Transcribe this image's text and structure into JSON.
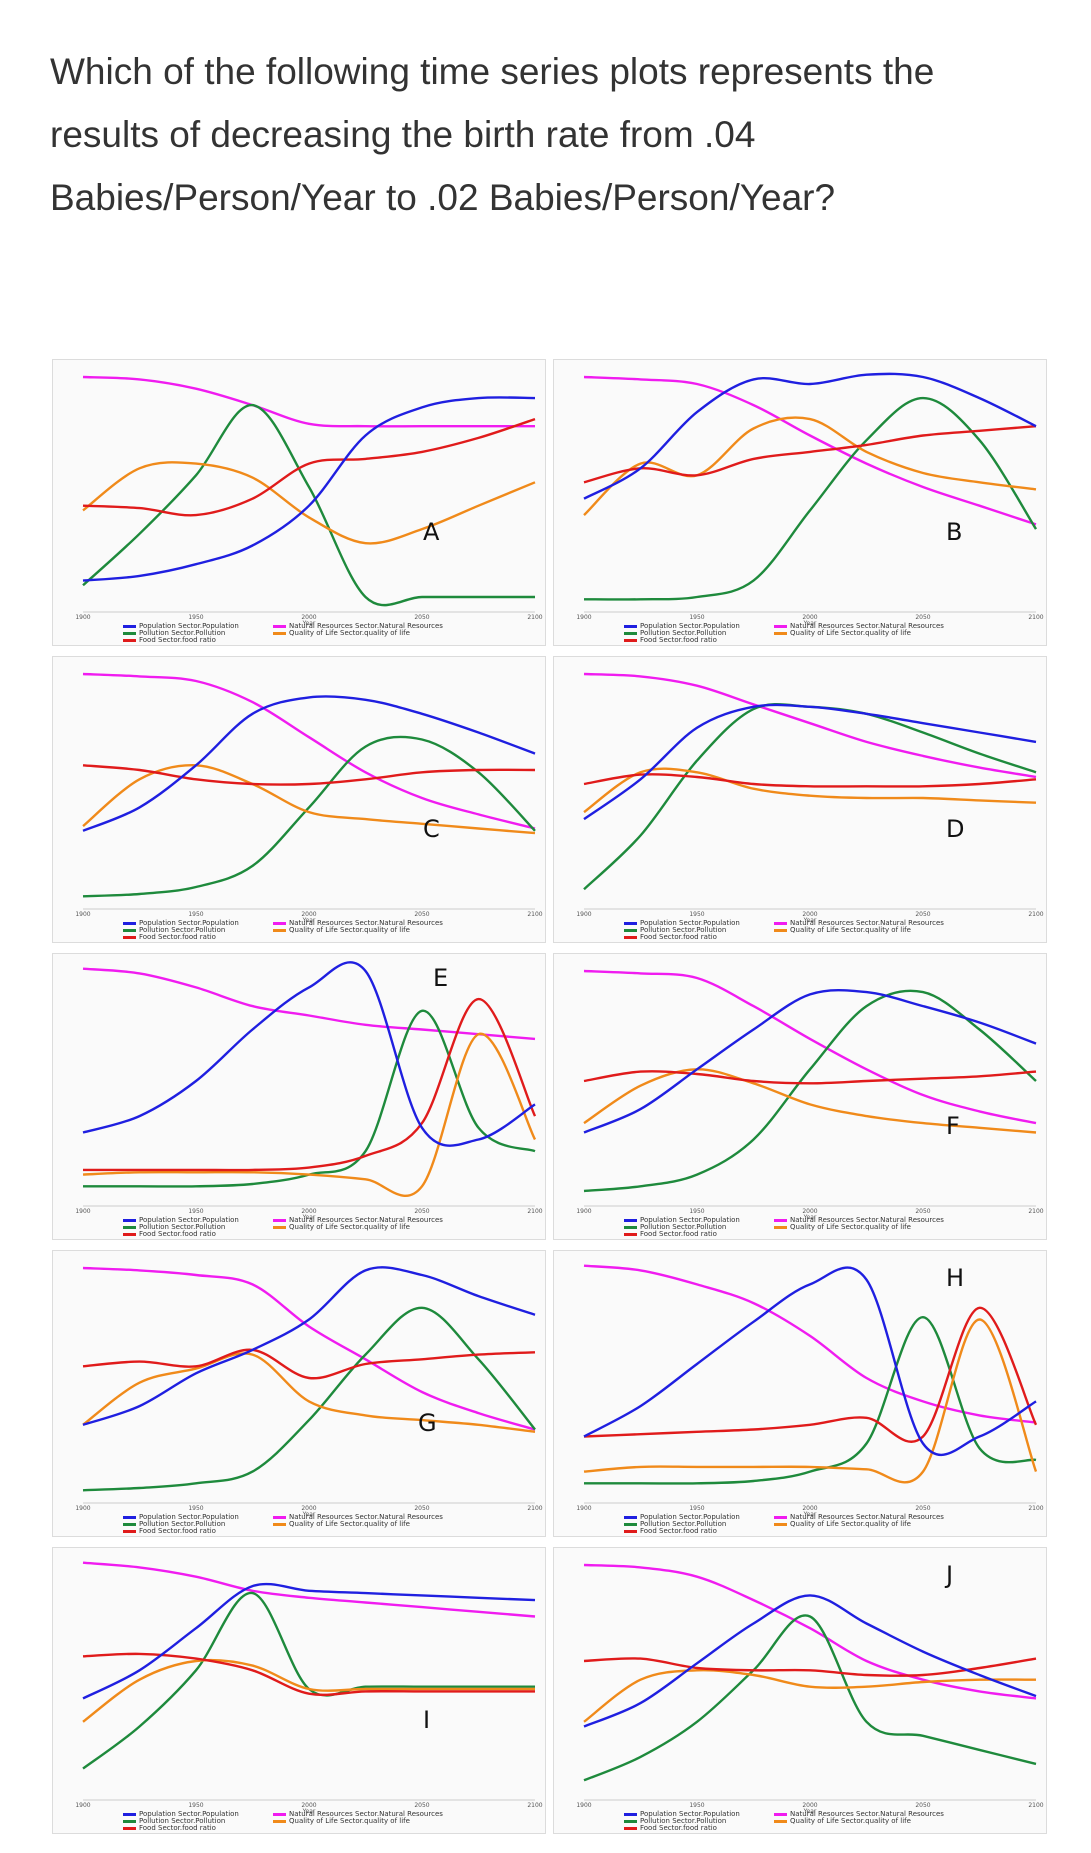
{
  "question": "Which of the following time series plots represents the results of decreasing the birth rate from .04 Babies/Person/Year to .02 Babies/Person/Year?",
  "colors": {
    "population": "#1f1fe0",
    "pollution": "#1e8a3c",
    "food": "#e01b1b",
    "resources": "#f01cf0",
    "quality": "#f08a1a"
  },
  "legend": {
    "population": "Population Sector.Population",
    "pollution": "Pollution Sector.Pollution",
    "food": "Food Sector.food ratio",
    "resources": "Natural Resources Sector.Natural Resources",
    "quality": "Quality of Life Sector.quality of life"
  },
  "chart_data": [
    {
      "type": "line",
      "label": "A",
      "x_ticks": [
        "1900",
        "1950",
        "2000",
        "2050",
        "2100"
      ],
      "xlabel": "Year",
      "x": [
        1900,
        1925,
        1950,
        1975,
        2000,
        2025,
        2050,
        2075,
        2100
      ],
      "series": {
        "population": [
          0.1,
          0.12,
          0.17,
          0.25,
          0.42,
          0.72,
          0.84,
          0.88,
          0.88
        ],
        "pollution": [
          0.08,
          0.3,
          0.55,
          0.85,
          0.5,
          0.03,
          0.03,
          0.03,
          0.03
        ],
        "food": [
          0.42,
          0.41,
          0.38,
          0.45,
          0.6,
          0.62,
          0.65,
          0.71,
          0.79
        ],
        "resources": [
          0.97,
          0.96,
          0.92,
          0.85,
          0.77,
          0.76,
          0.76,
          0.76,
          0.76
        ],
        "quality": [
          0.4,
          0.58,
          0.6,
          0.54,
          0.37,
          0.26,
          0.32,
          0.42,
          0.52
        ]
      }
    },
    {
      "type": "line",
      "label": "B",
      "x_ticks": [
        "1900",
        "1950",
        "2000",
        "2050",
        "2100"
      ],
      "xlabel": "Year",
      "x": [
        1900,
        1925,
        1950,
        1975,
        2000,
        2025,
        2050,
        2075,
        2100
      ],
      "series": {
        "population": [
          0.45,
          0.58,
          0.82,
          0.96,
          0.94,
          0.98,
          0.97,
          0.88,
          0.76
        ],
        "pollution": [
          0.02,
          0.02,
          0.03,
          0.1,
          0.4,
          0.7,
          0.88,
          0.7,
          0.32
        ],
        "food": [
          0.52,
          0.58,
          0.55,
          0.62,
          0.65,
          0.68,
          0.72,
          0.74,
          0.76
        ],
        "resources": [
          0.97,
          0.96,
          0.94,
          0.85,
          0.72,
          0.6,
          0.5,
          0.42,
          0.34
        ],
        "quality": [
          0.38,
          0.6,
          0.55,
          0.75,
          0.79,
          0.65,
          0.56,
          0.52,
          0.49
        ]
      }
    },
    {
      "type": "line",
      "label": "C",
      "x_ticks": [
        "1900",
        "1950",
        "2000",
        "2050",
        "2100"
      ],
      "xlabel": "Year",
      "x": [
        1900,
        1925,
        1950,
        1975,
        2000,
        2025,
        2050,
        2075,
        2100
      ],
      "series": {
        "population": [
          0.3,
          0.4,
          0.58,
          0.8,
          0.87,
          0.86,
          0.8,
          0.72,
          0.63
        ],
        "pollution": [
          0.02,
          0.03,
          0.06,
          0.15,
          0.4,
          0.66,
          0.69,
          0.55,
          0.3
        ],
        "food": [
          0.58,
          0.56,
          0.52,
          0.5,
          0.5,
          0.52,
          0.55,
          0.56,
          0.56
        ],
        "resources": [
          0.97,
          0.96,
          0.94,
          0.85,
          0.7,
          0.55,
          0.44,
          0.37,
          0.31
        ],
        "quality": [
          0.32,
          0.52,
          0.58,
          0.5,
          0.38,
          0.35,
          0.33,
          0.31,
          0.29
        ]
      }
    },
    {
      "type": "line",
      "label": "D",
      "x_ticks": [
        "1900",
        "1950",
        "2000",
        "2050",
        "2100"
      ],
      "xlabel": "Year",
      "x": [
        1900,
        1925,
        1950,
        1975,
        2000,
        2025,
        2050,
        2075,
        2100
      ],
      "series": {
        "population": [
          0.35,
          0.52,
          0.74,
          0.83,
          0.83,
          0.8,
          0.76,
          0.72,
          0.68
        ],
        "pollution": [
          0.05,
          0.28,
          0.6,
          0.82,
          0.83,
          0.8,
          0.72,
          0.63,
          0.55
        ],
        "food": [
          0.5,
          0.54,
          0.53,
          0.5,
          0.49,
          0.49,
          0.49,
          0.5,
          0.52
        ],
        "resources": [
          0.97,
          0.96,
          0.92,
          0.84,
          0.76,
          0.68,
          0.62,
          0.57,
          0.53
        ],
        "quality": [
          0.38,
          0.55,
          0.55,
          0.48,
          0.45,
          0.44,
          0.44,
          0.43,
          0.42
        ]
      }
    },
    {
      "type": "line",
      "label": "E",
      "x_ticks": [
        "1900",
        "1950",
        "2000",
        "2050",
        "2100"
      ],
      "xlabel": "Year",
      "x": [
        1900,
        1925,
        1950,
        1975,
        2000,
        2025,
        2050,
        2075,
        2100
      ],
      "series": {
        "population": [
          0.28,
          0.35,
          0.5,
          0.72,
          0.9,
          0.97,
          0.3,
          0.25,
          0.4
        ],
        "pollution": [
          0.05,
          0.05,
          0.05,
          0.06,
          0.1,
          0.2,
          0.8,
          0.3,
          0.2
        ],
        "food": [
          0.12,
          0.12,
          0.12,
          0.12,
          0.13,
          0.18,
          0.32,
          0.85,
          0.35
        ],
        "resources": [
          0.98,
          0.96,
          0.9,
          0.82,
          0.78,
          0.74,
          0.72,
          0.7,
          0.68
        ],
        "quality": [
          0.1,
          0.11,
          0.11,
          0.11,
          0.1,
          0.08,
          0.05,
          0.7,
          0.25
        ]
      }
    },
    {
      "type": "line",
      "label": "F",
      "x_ticks": [
        "1900",
        "1950",
        "2000",
        "2050",
        "2100"
      ],
      "xlabel": "Year",
      "x": [
        1900,
        1925,
        1950,
        1975,
        2000,
        2025,
        2050,
        2075,
        2100
      ],
      "series": {
        "population": [
          0.28,
          0.38,
          0.55,
          0.72,
          0.87,
          0.88,
          0.82,
          0.75,
          0.66
        ],
        "pollution": [
          0.03,
          0.05,
          0.1,
          0.25,
          0.55,
          0.82,
          0.88,
          0.72,
          0.5
        ],
        "food": [
          0.5,
          0.54,
          0.53,
          0.5,
          0.49,
          0.5,
          0.51,
          0.52,
          0.54
        ],
        "resources": [
          0.97,
          0.96,
          0.94,
          0.82,
          0.68,
          0.55,
          0.44,
          0.37,
          0.32
        ],
        "quality": [
          0.32,
          0.48,
          0.55,
          0.49,
          0.4,
          0.35,
          0.32,
          0.3,
          0.28
        ]
      }
    },
    {
      "type": "line",
      "label": "G",
      "x_ticks": [
        "1900",
        "1950",
        "2000",
        "2050",
        "2100"
      ],
      "xlabel": "Year",
      "x": [
        1900,
        1925,
        1950,
        1975,
        2000,
        2025,
        2050,
        2075,
        2100
      ],
      "series": {
        "population": [
          0.3,
          0.38,
          0.52,
          0.62,
          0.75,
          0.96,
          0.94,
          0.85,
          0.77
        ],
        "pollution": [
          0.02,
          0.03,
          0.05,
          0.1,
          0.32,
          0.6,
          0.8,
          0.58,
          0.28
        ],
        "food": [
          0.55,
          0.57,
          0.55,
          0.62,
          0.5,
          0.56,
          0.58,
          0.6,
          0.61
        ],
        "resources": [
          0.97,
          0.96,
          0.94,
          0.9,
          0.72,
          0.58,
          0.44,
          0.35,
          0.28
        ],
        "quality": [
          0.3,
          0.48,
          0.54,
          0.6,
          0.4,
          0.34,
          0.32,
          0.3,
          0.27
        ]
      }
    },
    {
      "type": "line",
      "label": "H",
      "x_ticks": [
        "1900",
        "1950",
        "2000",
        "2050",
        "2100"
      ],
      "xlabel": "Year",
      "x": [
        1900,
        1925,
        1950,
        1975,
        2000,
        2025,
        2050,
        2075,
        2100
      ],
      "series": {
        "population": [
          0.25,
          0.38,
          0.56,
          0.74,
          0.9,
          0.92,
          0.22,
          0.25,
          0.4
        ],
        "pollution": [
          0.05,
          0.05,
          0.05,
          0.06,
          0.1,
          0.22,
          0.76,
          0.2,
          0.15
        ],
        "food": [
          0.25,
          0.26,
          0.27,
          0.28,
          0.3,
          0.33,
          0.25,
          0.8,
          0.3
        ],
        "resources": [
          0.98,
          0.96,
          0.9,
          0.82,
          0.68,
          0.5,
          0.4,
          0.34,
          0.31
        ],
        "quality": [
          0.1,
          0.12,
          0.12,
          0.12,
          0.12,
          0.11,
          0.1,
          0.75,
          0.1
        ]
      }
    },
    {
      "type": "line",
      "label": "I",
      "x_ticks": [
        "1900",
        "1950",
        "2000",
        "2050",
        "2100"
      ],
      "xlabel": "Year",
      "x": [
        1900,
        1925,
        1950,
        1975,
        2000,
        2025,
        2050,
        2075,
        2100
      ],
      "series": {
        "population": [
          0.4,
          0.52,
          0.7,
          0.88,
          0.86,
          0.85,
          0.84,
          0.83,
          0.82
        ],
        "pollution": [
          0.1,
          0.28,
          0.52,
          0.85,
          0.44,
          0.45,
          0.45,
          0.45,
          0.45
        ],
        "food": [
          0.58,
          0.59,
          0.57,
          0.52,
          0.42,
          0.43,
          0.43,
          0.43,
          0.43
        ],
        "resources": [
          0.98,
          0.96,
          0.92,
          0.86,
          0.83,
          0.81,
          0.79,
          0.77,
          0.75
        ],
        "quality": [
          0.3,
          0.48,
          0.56,
          0.54,
          0.44,
          0.44,
          0.44,
          0.44,
          0.44
        ]
      }
    },
    {
      "type": "line",
      "label": "J",
      "x_ticks": [
        "1900",
        "1950",
        "2000",
        "2050",
        "2100"
      ],
      "xlabel": "Year",
      "x": [
        1900,
        1925,
        1950,
        1975,
        2000,
        2025,
        2050,
        2075,
        2100
      ],
      "series": {
        "population": [
          0.28,
          0.38,
          0.55,
          0.72,
          0.84,
          0.72,
          0.6,
          0.5,
          0.41
        ],
        "pollution": [
          0.05,
          0.15,
          0.3,
          0.52,
          0.75,
          0.3,
          0.24,
          0.18,
          0.12
        ],
        "food": [
          0.56,
          0.57,
          0.53,
          0.52,
          0.52,
          0.5,
          0.5,
          0.53,
          0.57
        ],
        "resources": [
          0.97,
          0.96,
          0.92,
          0.82,
          0.7,
          0.56,
          0.48,
          0.43,
          0.4
        ],
        "quality": [
          0.3,
          0.48,
          0.52,
          0.5,
          0.45,
          0.45,
          0.47,
          0.48,
          0.48
        ]
      }
    }
  ]
}
